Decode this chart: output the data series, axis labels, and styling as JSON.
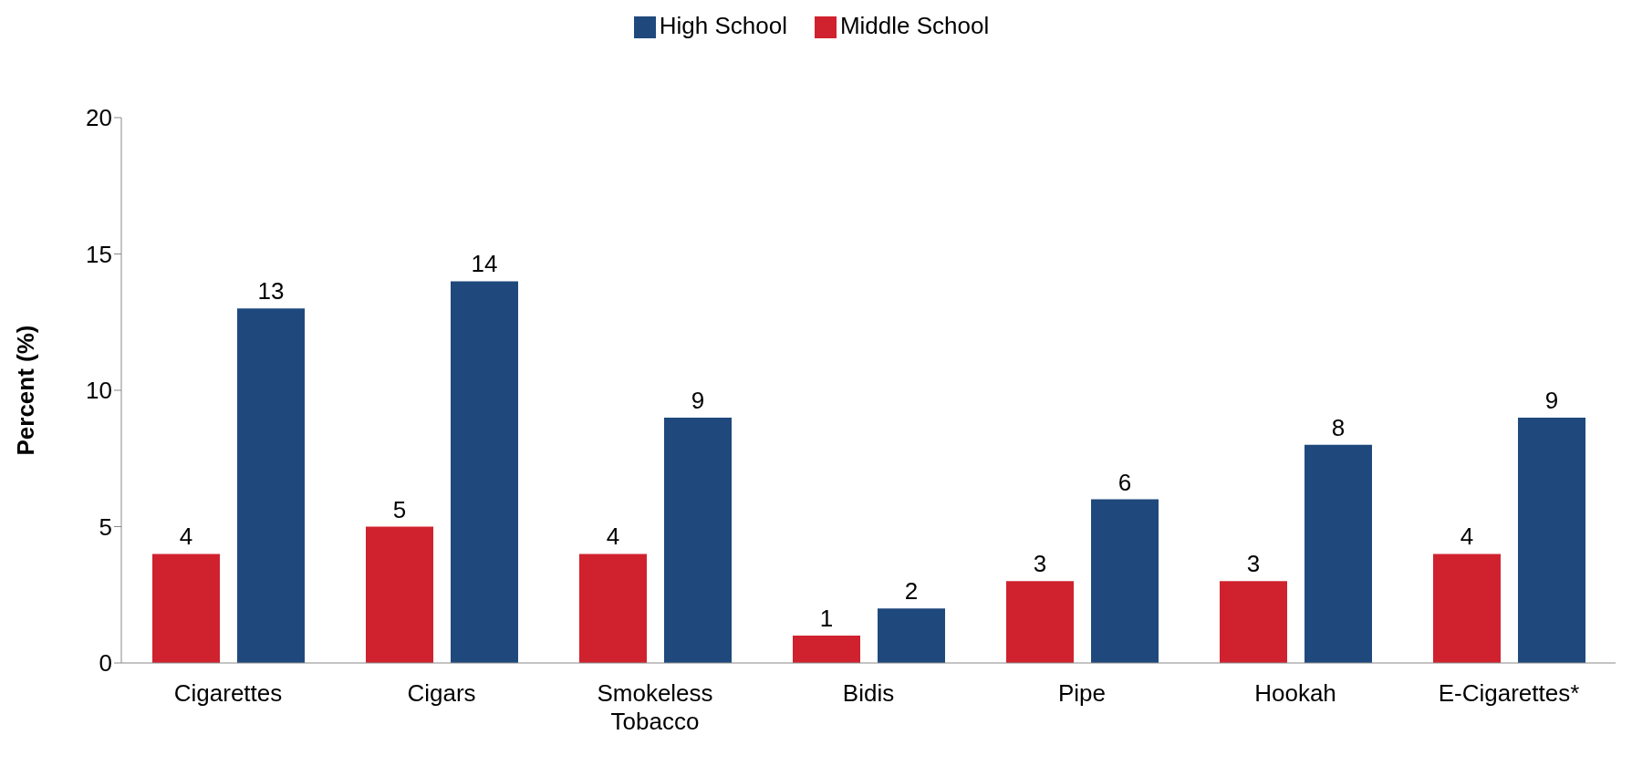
{
  "chart_data": {
    "type": "bar",
    "categories": [
      "Cigarettes",
      "Cigars",
      "Smokeless Tobacco",
      "Bidis",
      "Pipe",
      "Hookah",
      "E-Cigarettes*"
    ],
    "series": [
      {
        "name": "Middle School",
        "color": "#d0222e",
        "values": [
          4,
          5,
          4,
          1,
          3,
          3,
          4
        ]
      },
      {
        "name": "High School",
        "color": "#1f497d",
        "values": [
          13,
          14,
          9,
          2,
          6,
          8,
          9
        ]
      }
    ],
    "ylabel": "Percent (%)",
    "ylim": [
      0,
      20
    ],
    "yticks": [
      0,
      5,
      10,
      15,
      20
    ],
    "grid": false,
    "legend": "top",
    "data_labels": true
  }
}
